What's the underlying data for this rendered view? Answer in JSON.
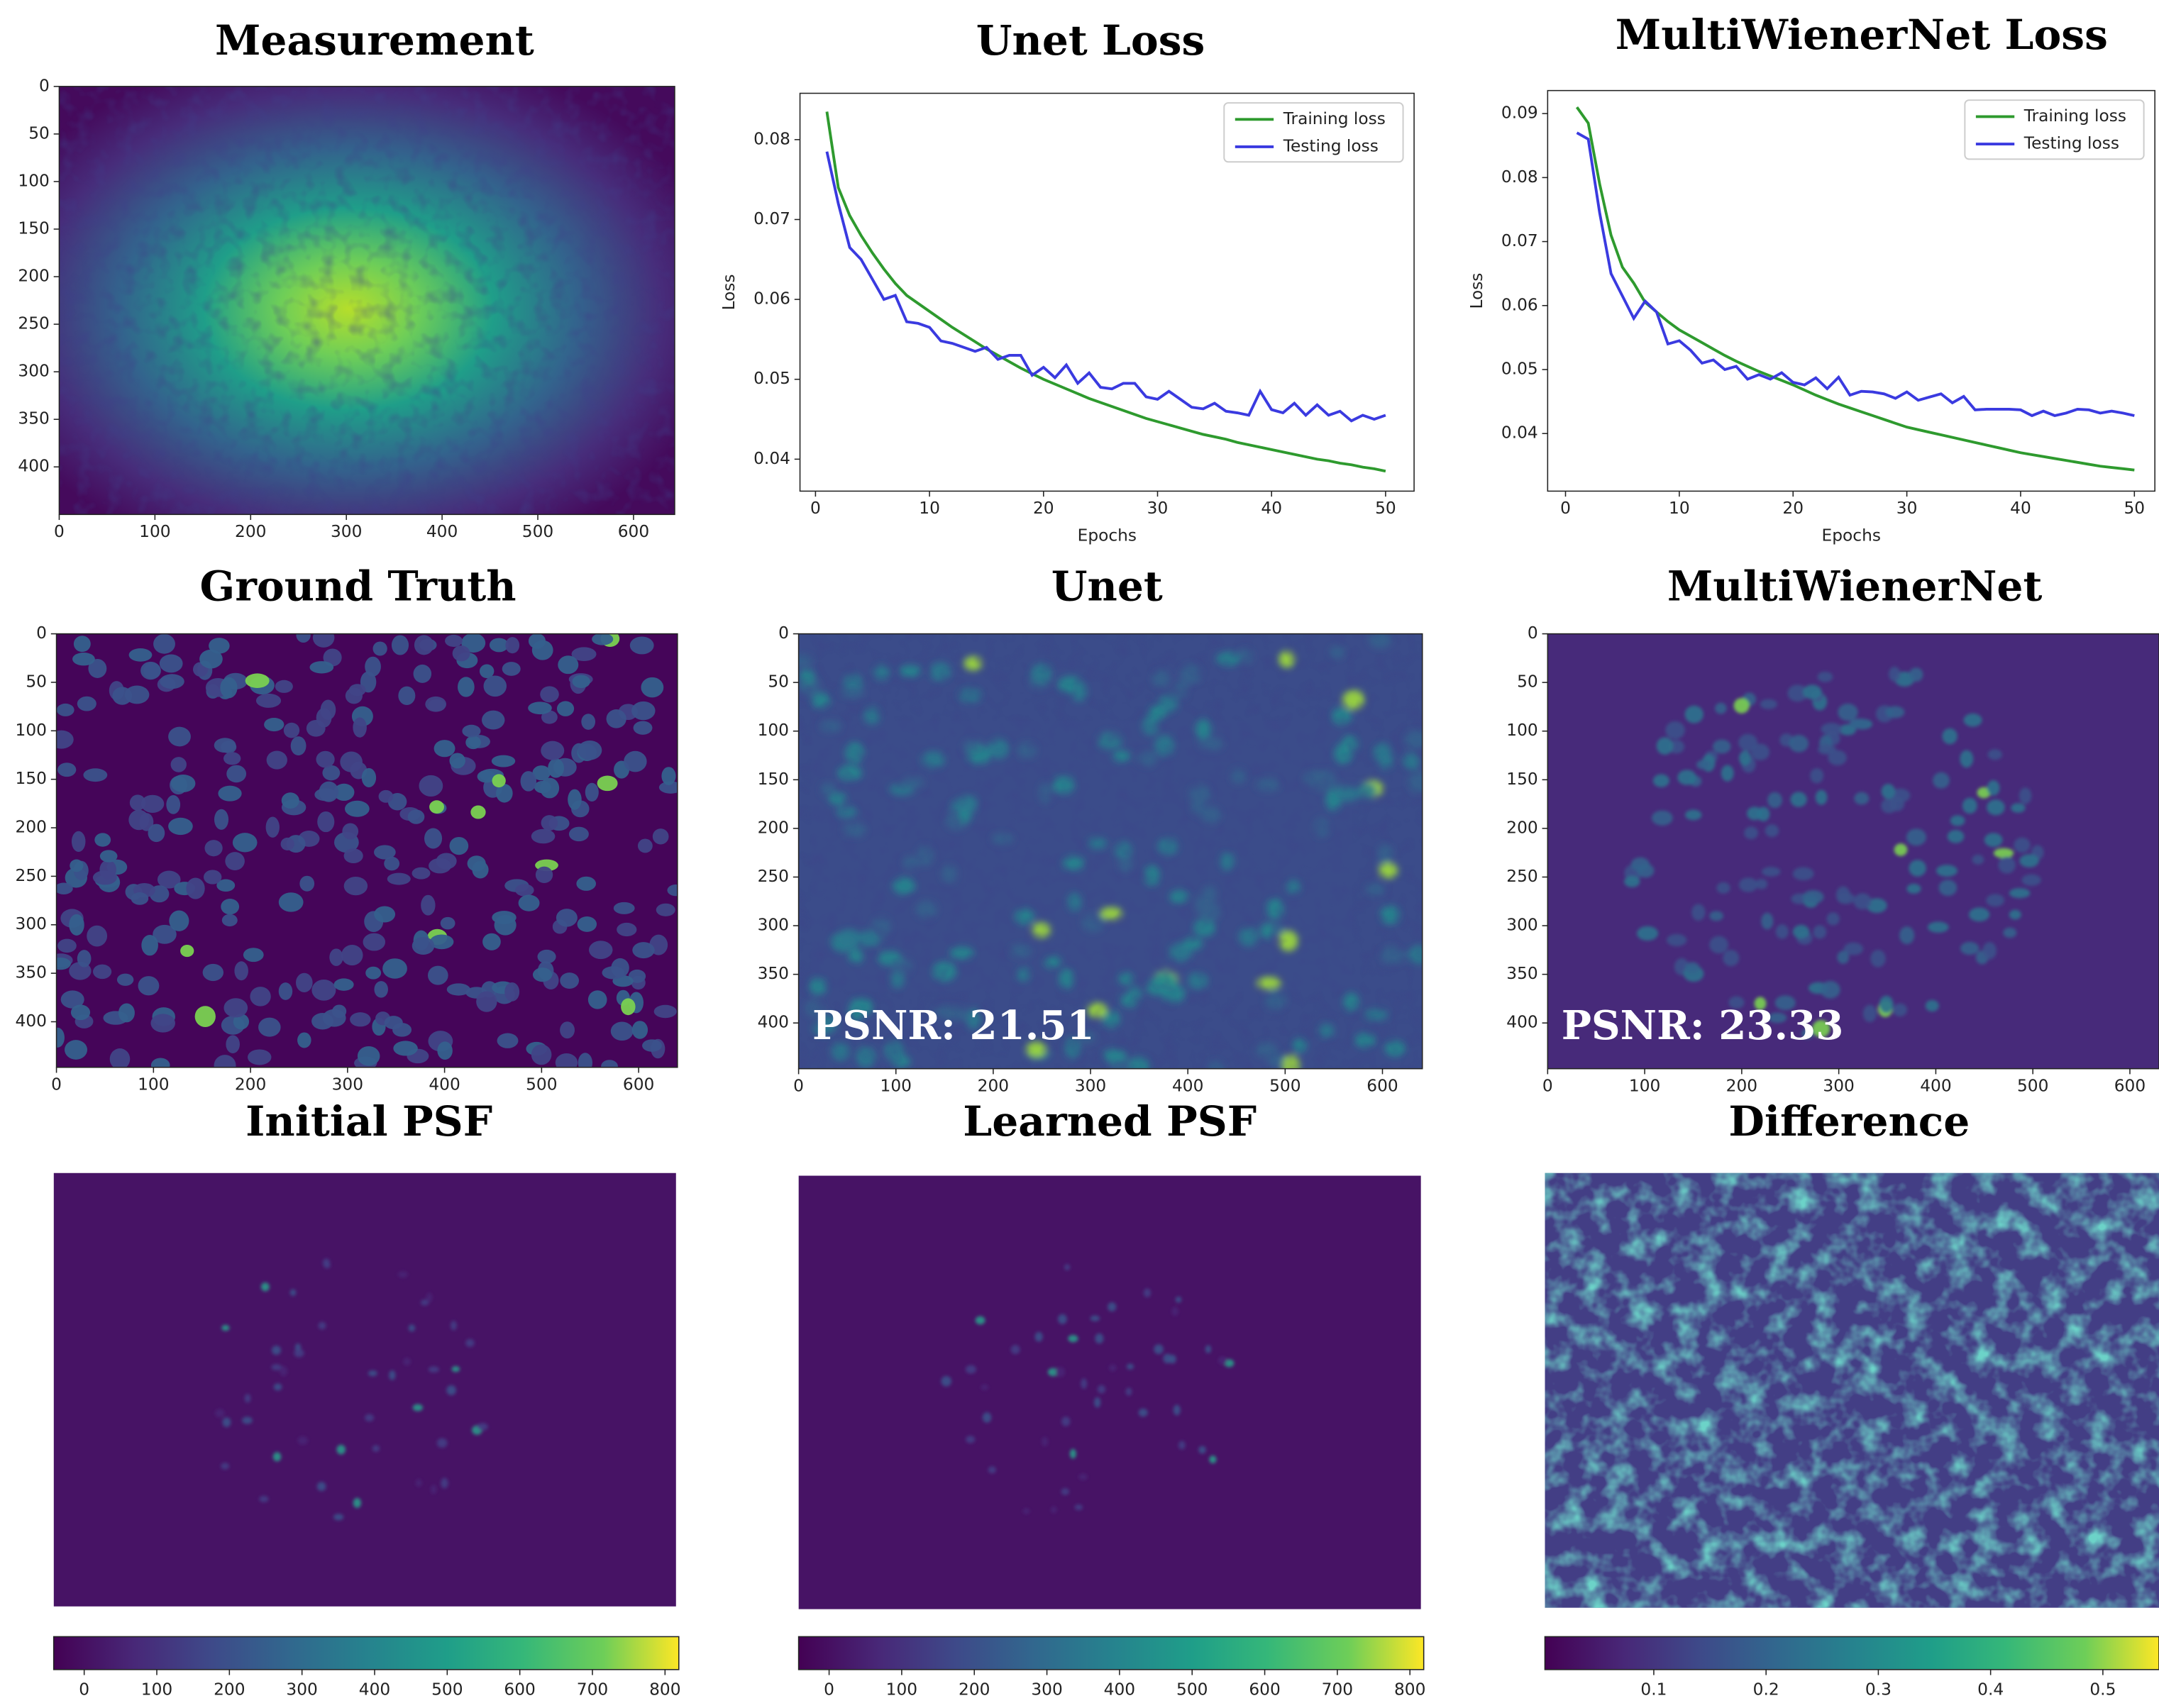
{
  "chart_data": [
    {
      "type": "image",
      "title": "Measurement",
      "xlim": [
        0,
        643
      ],
      "ylim": [
        450,
        0
      ],
      "xticks": [
        0,
        100,
        200,
        300,
        400,
        500,
        600
      ],
      "yticks": [
        0,
        50,
        100,
        150,
        200,
        250,
        300,
        350,
        400
      ],
      "colormap": "viridis"
    },
    {
      "type": "line",
      "title": "Unet Loss",
      "xlabel": "Epochs",
      "ylabel": "Loss",
      "legend": "upper right",
      "x": [
        1,
        2,
        3,
        4,
        5,
        6,
        7,
        8,
        9,
        10,
        11,
        12,
        13,
        14,
        15,
        16,
        17,
        18,
        19,
        20,
        21,
        22,
        23,
        24,
        25,
        26,
        27,
        28,
        29,
        30,
        31,
        32,
        33,
        34,
        35,
        36,
        37,
        38,
        39,
        40,
        41,
        42,
        43,
        44,
        45,
        46,
        47,
        48,
        49,
        50
      ],
      "xlim": [
        -1.36,
        52.5
      ],
      "ylim": [
        0.036,
        0.0858
      ],
      "xticks": [
        0,
        10,
        20,
        30,
        40,
        50
      ],
      "yticks": [
        0.04,
        0.05,
        0.06,
        0.07,
        0.08
      ],
      "series": [
        {
          "name": "Training loss",
          "color": "#2e9a2e",
          "values": [
            0.0835,
            0.074,
            0.0705,
            0.068,
            0.0658,
            0.0638,
            0.062,
            0.0605,
            0.0595,
            0.0585,
            0.0575,
            0.0565,
            0.0556,
            0.0547,
            0.0538,
            0.053,
            0.0522,
            0.0514,
            0.0507,
            0.05,
            0.0494,
            0.0488,
            0.0482,
            0.0476,
            0.0471,
            0.0466,
            0.0461,
            0.0456,
            0.0451,
            0.0447,
            0.0443,
            0.0439,
            0.0435,
            0.0431,
            0.0428,
            0.0425,
            0.0421,
            0.0418,
            0.0415,
            0.0412,
            0.0409,
            0.0406,
            0.0403,
            0.04,
            0.0398,
            0.0395,
            0.0393,
            0.039,
            0.0388,
            0.0385
          ]
        },
        {
          "name": "Testing loss",
          "color": "#3a3ae0",
          "values": [
            0.0785,
            0.072,
            0.0665,
            0.065,
            0.0625,
            0.06,
            0.0605,
            0.0572,
            0.057,
            0.0565,
            0.0548,
            0.0545,
            0.054,
            0.0535,
            0.054,
            0.0525,
            0.053,
            0.053,
            0.0505,
            0.0515,
            0.0502,
            0.0518,
            0.0495,
            0.0508,
            0.049,
            0.0488,
            0.0495,
            0.0495,
            0.0478,
            0.0475,
            0.0485,
            0.0475,
            0.0465,
            0.0463,
            0.047,
            0.046,
            0.0458,
            0.0455,
            0.0485,
            0.0462,
            0.0458,
            0.047,
            0.0455,
            0.0468,
            0.0455,
            0.046,
            0.0448,
            0.0455,
            0.045,
            0.0455
          ]
        }
      ]
    },
    {
      "type": "line",
      "title": "MultiWienerNet Loss",
      "xlabel": "Epochs",
      "ylabel": "Loss",
      "legend": "upper right",
      "x": [
        1,
        2,
        3,
        4,
        5,
        6,
        7,
        8,
        9,
        10,
        11,
        12,
        13,
        14,
        15,
        16,
        17,
        18,
        19,
        20,
        21,
        22,
        23,
        24,
        25,
        26,
        27,
        28,
        29,
        30,
        31,
        32,
        33,
        34,
        35,
        36,
        37,
        38,
        39,
        40,
        41,
        42,
        43,
        44,
        45,
        46,
        47,
        48,
        49,
        50
      ],
      "xlim": [
        -1.57,
        51.8
      ],
      "ylim": [
        0.031,
        0.0936
      ],
      "xticks": [
        0,
        10,
        20,
        30,
        40,
        50
      ],
      "yticks": [
        0.04,
        0.05,
        0.06,
        0.07,
        0.08,
        0.09
      ],
      "series": [
        {
          "name": "Training loss",
          "color": "#2e9a2e",
          "values": [
            0.091,
            0.0885,
            0.079,
            0.071,
            0.066,
            0.0635,
            0.0605,
            0.059,
            0.0575,
            0.0562,
            0.0552,
            0.0542,
            0.0532,
            0.0522,
            0.0513,
            0.0505,
            0.0497,
            0.049,
            0.0483,
            0.0476,
            0.0468,
            0.046,
            0.0453,
            0.0446,
            0.044,
            0.0434,
            0.0428,
            0.0422,
            0.0416,
            0.041,
            0.0406,
            0.0402,
            0.0398,
            0.0394,
            0.039,
            0.0386,
            0.0382,
            0.0378,
            0.0374,
            0.037,
            0.0367,
            0.0364,
            0.0361,
            0.0358,
            0.0355,
            0.0352,
            0.0349,
            0.0347,
            0.0345,
            0.0343
          ]
        },
        {
          "name": "Testing loss",
          "color": "#3a3ae0",
          "values": [
            0.087,
            0.086,
            0.0745,
            0.065,
            0.0615,
            0.058,
            0.0607,
            0.059,
            0.054,
            0.0545,
            0.053,
            0.051,
            0.0515,
            0.05,
            0.0505,
            0.0485,
            0.0492,
            0.0485,
            0.0495,
            0.048,
            0.0476,
            0.0487,
            0.047,
            0.0488,
            0.046,
            0.0466,
            0.0465,
            0.0462,
            0.0455,
            0.0465,
            0.0452,
            0.0457,
            0.0462,
            0.0448,
            0.0458,
            0.0437,
            0.0438,
            0.0438,
            0.0438,
            0.0437,
            0.0428,
            0.0435,
            0.0428,
            0.0432,
            0.0438,
            0.0437,
            0.0432,
            0.0435,
            0.0432,
            0.0428
          ]
        }
      ]
    },
    {
      "type": "image",
      "title": "Ground Truth",
      "xlim": [
        0,
        640
      ],
      "ylim": [
        447,
        0
      ],
      "xticks": [
        0,
        100,
        200,
        300,
        400,
        500,
        600
      ],
      "yticks": [
        0,
        50,
        100,
        150,
        200,
        250,
        300,
        350,
        400
      ],
      "colormap": "viridis"
    },
    {
      "type": "image",
      "title": "Unet",
      "annotation": "PSNR: 21.51",
      "xlim": [
        0,
        641
      ],
      "ylim": [
        447,
        0
      ],
      "xticks": [
        0,
        100,
        200,
        300,
        400,
        500,
        600
      ],
      "yticks": [
        0,
        50,
        100,
        150,
        200,
        250,
        300,
        350,
        400
      ],
      "colormap": "viridis"
    },
    {
      "type": "image",
      "title": "MultiWienerNet",
      "annotation": "PSNR: 23.33",
      "xlim": [
        0,
        630
      ],
      "ylim": [
        447,
        0
      ],
      "xticks": [
        0,
        100,
        200,
        300,
        400,
        500,
        600
      ],
      "yticks": [
        0,
        50,
        100,
        150,
        200,
        250,
        300,
        350,
        400
      ],
      "colormap": "viridis"
    },
    {
      "type": "image",
      "title": "Initial PSF",
      "colormap": "viridis",
      "colorbar": {
        "lim": [
          -42,
          819
        ],
        "ticks": [
          0,
          100,
          200,
          300,
          400,
          500,
          600,
          700,
          800
        ]
      }
    },
    {
      "type": "image",
      "title": "Learned PSF",
      "colormap": "viridis",
      "colorbar": {
        "lim": [
          -42,
          819
        ],
        "ticks": [
          0,
          100,
          200,
          300,
          400,
          500,
          600,
          700,
          800
        ]
      }
    },
    {
      "type": "image",
      "title": "Difference",
      "colormap": "viridis",
      "colorbar": {
        "lim": [
          0.003,
          0.55
        ],
        "ticks": [
          0.1,
          0.2,
          0.3,
          0.4,
          0.5
        ]
      }
    }
  ]
}
